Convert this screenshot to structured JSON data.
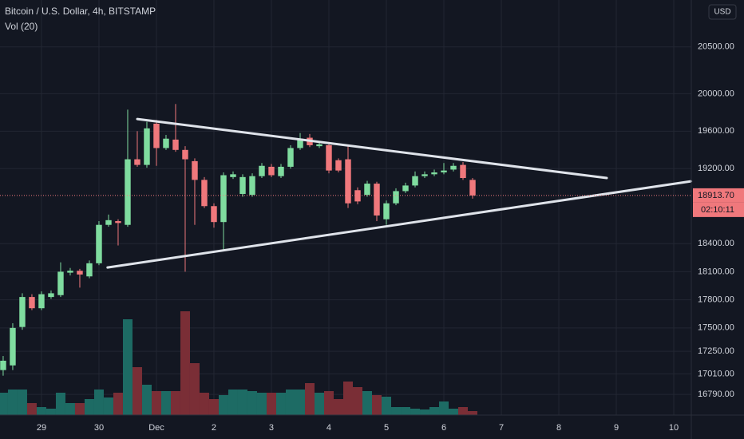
{
  "chart_data": {
    "type": "candlestick",
    "title": "Bitcoin / U.S. Dollar, 4h, BITSTAMP",
    "subtitle": "Vol (20)",
    "currency": "USD",
    "open": [
      17050,
      17100,
      17510,
      17830,
      17710,
      17830,
      17850,
      18090,
      18110,
      18050,
      18190,
      18600,
      18640,
      18600,
      19300,
      19240,
      19680,
      19420,
      19510,
      19400,
      19280,
      19080,
      18800,
      18630,
      19110,
      18930,
      18920,
      19120,
      19220,
      19120,
      19220,
      19420,
      19530,
      19440,
      19450,
      19290,
      19300,
      18970,
      18920,
      19040,
      18660,
      18830,
      18960,
      19020,
      19120,
      19140,
      19160,
      19190,
      19240,
      19080
    ],
    "high": [
      17200,
      17550,
      17870,
      17860,
      17890,
      17900,
      18200,
      18140,
      18130,
      18220,
      18640,
      18710,
      18660,
      19830,
      19600,
      19700,
      19720,
      19560,
      19890,
      19440,
      19310,
      19110,
      18830,
      19160,
      19170,
      19140,
      19150,
      19260,
      19250,
      19250,
      19450,
      19580,
      19570,
      19490,
      19480,
      19310,
      19440,
      19000,
      19070,
      19060,
      18860,
      18990,
      19050,
      19170,
      19170,
      19190,
      19260,
      19260,
      19270,
      19100
    ],
    "low": [
      16990,
      17050,
      17480,
      17690,
      17690,
      17810,
      17830,
      18060,
      17930,
      18030,
      18170,
      18580,
      18380,
      18580,
      19220,
      19210,
      19230,
      19400,
      19380,
      18100,
      18600,
      18780,
      18570,
      18330,
      19090,
      18900,
      18900,
      19100,
      19110,
      19100,
      19200,
      19400,
      19430,
      19420,
      19150,
      19160,
      18780,
      18820,
      18900,
      18640,
      18600,
      18810,
      18940,
      19000,
      19100,
      19120,
      19140,
      19170,
      19080,
      18880
    ],
    "close": [
      17150,
      17500,
      17830,
      17710,
      17860,
      17870,
      18100,
      18110,
      18070,
      18190,
      18600,
      18650,
      18620,
      19300,
      19240,
      19630,
      19420,
      19520,
      19400,
      19300,
      19080,
      18800,
      18630,
      19130,
      19140,
      19110,
      19120,
      19230,
      19130,
      19220,
      19420,
      19520,
      19450,
      19460,
      19180,
      19180,
      18830,
      18850,
      19040,
      18700,
      18830,
      18960,
      19020,
      19120,
      19140,
      19160,
      19180,
      19230,
      19100,
      18913.7
    ],
    "volume": [
      28,
      32,
      32,
      15,
      10,
      8,
      28,
      15,
      15,
      20,
      32,
      22,
      28,
      120,
      60,
      38,
      30,
      30,
      30,
      130,
      65,
      28,
      20,
      25,
      32,
      32,
      30,
      28,
      28,
      28,
      32,
      32,
      40,
      28,
      30,
      20,
      42,
      35,
      30,
      25,
      23,
      10,
      10,
      8,
      7,
      10,
      17,
      8,
      10,
      5
    ],
    "up_color": "#7fdc9f",
    "down_color": "#f0787c",
    "volume_up_color": "#1d6b64",
    "volume_down_color": "#7a2e36",
    "trendline_color": "#dfe3ea",
    "trendlines": [
      [
        [
          14,
          19730
        ],
        [
          63,
          19100
        ]
      ],
      [
        [
          10.9,
          18145
        ],
        [
          71.8,
          19065
        ]
      ]
    ],
    "xlim": [
      -0.33,
      71.83
    ],
    "ylim": [
      16570,
      21000
    ],
    "xticks": [
      {
        "value": 4,
        "label": "29"
      },
      {
        "value": 10,
        "label": "30"
      },
      {
        "value": 16,
        "label": "Dec"
      },
      {
        "value": 22,
        "label": "2"
      },
      {
        "value": 28,
        "label": "3"
      },
      {
        "value": 34,
        "label": "4"
      },
      {
        "value": 40,
        "label": "5"
      },
      {
        "value": 46,
        "label": "6"
      },
      {
        "value": 52,
        "label": "7"
      },
      {
        "value": 58,
        "label": "8"
      },
      {
        "value": 64,
        "label": "9"
      },
      {
        "value": 70,
        "label": "10"
      }
    ],
    "yticks": [
      {
        "value": 20500,
        "label": "20500.00"
      },
      {
        "value": 20000,
        "label": "20000.00"
      },
      {
        "value": 19600,
        "label": "19600.00"
      },
      {
        "value": 19200,
        "label": "19200.00"
      },
      {
        "value": 18400,
        "label": "18400.00"
      },
      {
        "value": 18100,
        "label": "18100.00"
      },
      {
        "value": 17800,
        "label": "17800.00"
      },
      {
        "value": 17500,
        "label": "17500.00"
      },
      {
        "value": 17250,
        "label": "17250.00"
      },
      {
        "value": 17010,
        "label": "17010.00"
      },
      {
        "value": 16790,
        "label": "16790.00"
      }
    ],
    "last_price": {
      "value": 18913.7,
      "label": "18913.70"
    },
    "countdown": "02:10:11",
    "grid": true
  }
}
